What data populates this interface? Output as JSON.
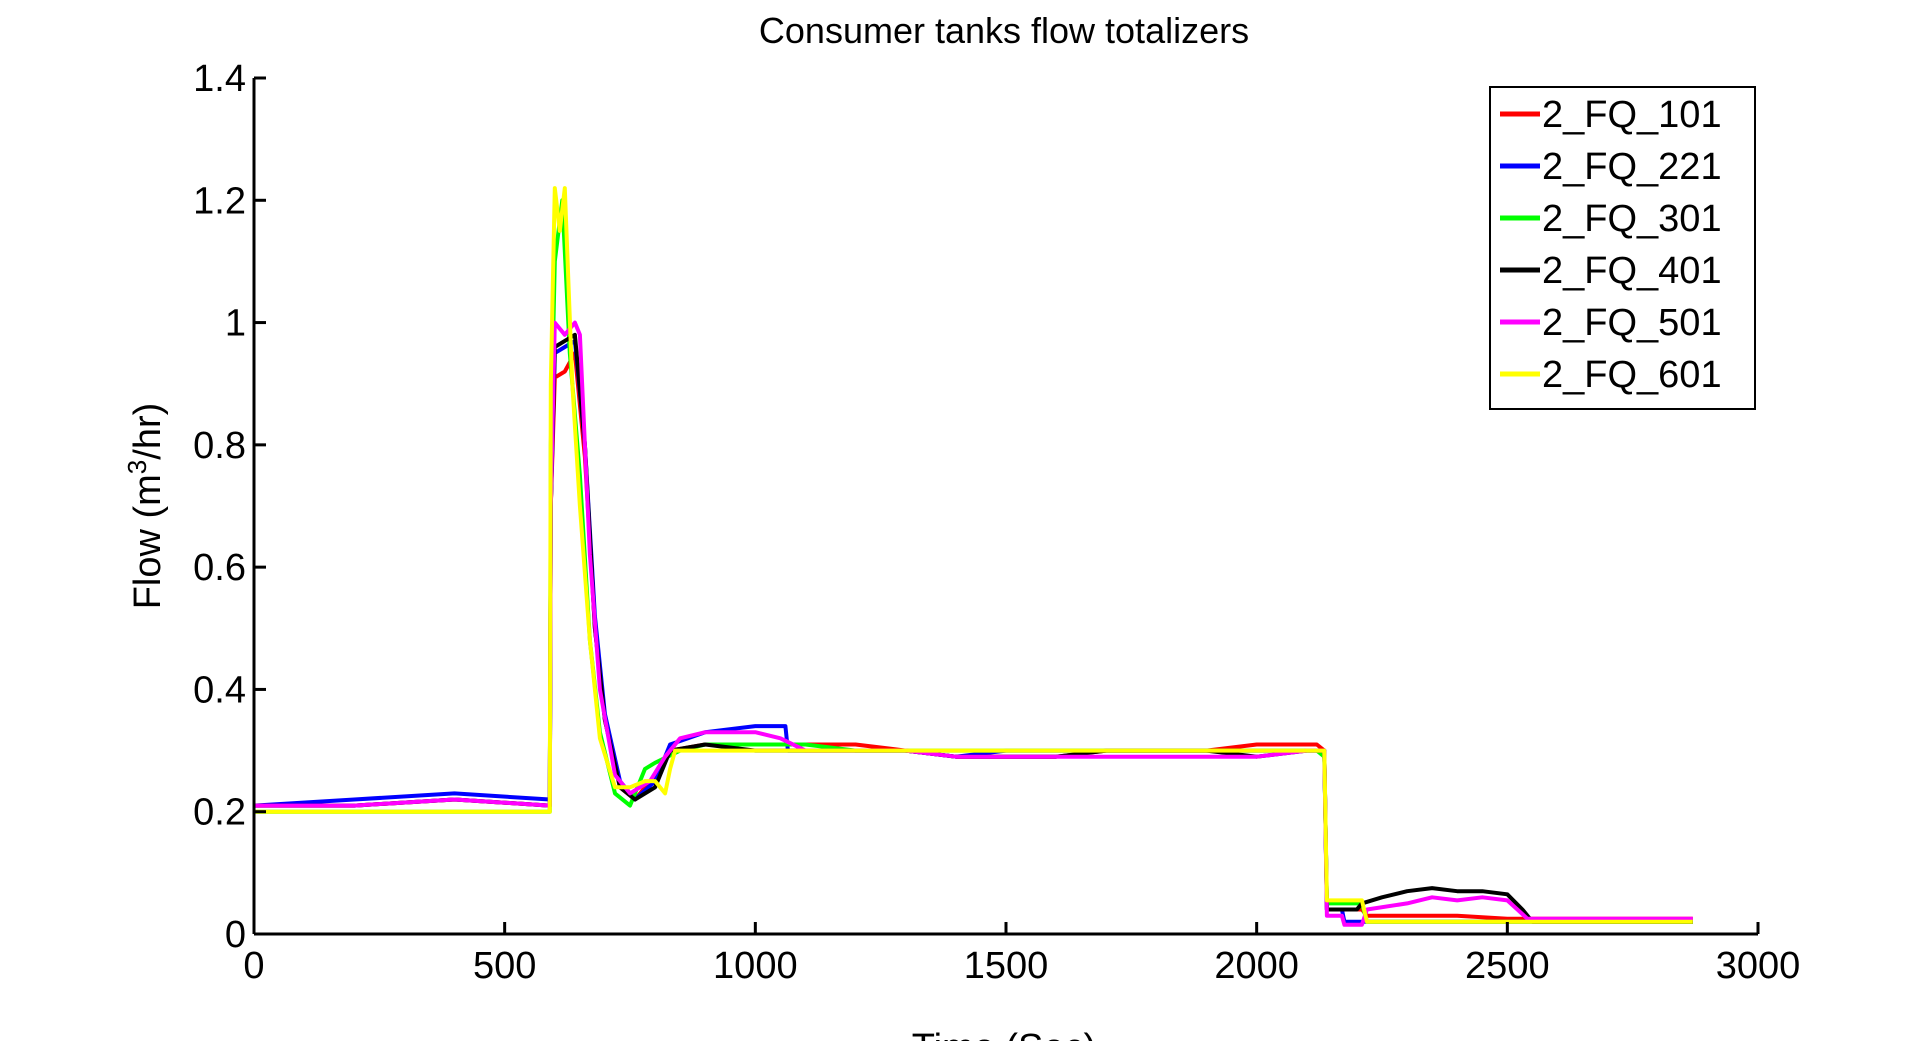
{
  "chart_data": {
    "type": "line",
    "title": "Consumer tanks flow totalizers",
    "xlabel": "Time (Sec)",
    "ylabel_main": "Flow (m",
    "ylabel_sup": "3",
    "ylabel_end": "/hr)",
    "xlim": [
      0,
      3000
    ],
    "ylim": [
      0,
      1.4
    ],
    "xticks": [
      0,
      500,
      1000,
      1500,
      2000,
      2500,
      3000
    ],
    "xtick_labels": [
      "0",
      "500",
      "1000",
      "1500",
      "2000",
      "2500",
      "3000"
    ],
    "yticks": [
      0,
      0.2,
      0.4,
      0.6,
      0.8,
      1.0,
      1.2,
      1.4
    ],
    "ytick_labels": [
      "0",
      "0.2",
      "0.4",
      "0.6",
      "0.8",
      "1",
      "1.2",
      "1.4"
    ],
    "grid": false,
    "legend_position": "top-right",
    "series": [
      {
        "name": "2_FQ_101",
        "color": "#ff0000",
        "x": [
          0,
          200,
          400,
          590,
          592,
          600,
          620,
          640,
          660,
          680,
          700,
          730,
          760,
          800,
          830,
          900,
          1000,
          1100,
          1200,
          1300,
          1400,
          1500,
          1600,
          1700,
          1800,
          1900,
          2000,
          2100,
          2120,
          2135,
          2140,
          2210,
          2220,
          2300,
          2400,
          2500,
          2550,
          2870
        ],
        "y": [
          0.21,
          0.21,
          0.22,
          0.21,
          0.7,
          0.91,
          0.92,
          0.95,
          0.78,
          0.5,
          0.35,
          0.24,
          0.22,
          0.26,
          0.3,
          0.31,
          0.31,
          0.31,
          0.31,
          0.3,
          0.29,
          0.29,
          0.29,
          0.3,
          0.3,
          0.3,
          0.31,
          0.31,
          0.31,
          0.3,
          0.04,
          0.04,
          0.03,
          0.03,
          0.03,
          0.025,
          0.025,
          0.025
        ]
      },
      {
        "name": "2_FQ_221",
        "color": "#0000ff",
        "x": [
          0,
          200,
          400,
          590,
          592,
          600,
          620,
          640,
          660,
          680,
          700,
          730,
          760,
          800,
          830,
          900,
          1000,
          1060,
          1065,
          1100,
          1200,
          1300,
          1400,
          1500,
          1600,
          1700,
          1800,
          1900,
          2000,
          2100,
          2120,
          2135,
          2140,
          2170,
          2175,
          2220,
          2300,
          2400,
          2500,
          2550,
          2870
        ],
        "y": [
          0.21,
          0.22,
          0.23,
          0.22,
          0.7,
          0.95,
          0.96,
          0.97,
          0.8,
          0.52,
          0.36,
          0.25,
          0.22,
          0.25,
          0.31,
          0.33,
          0.34,
          0.34,
          0.3,
          0.3,
          0.3,
          0.3,
          0.29,
          0.3,
          0.3,
          0.3,
          0.3,
          0.3,
          0.3,
          0.3,
          0.3,
          0.3,
          0.04,
          0.04,
          0.02,
          0.02,
          0.02,
          0.02,
          0.02,
          0.02,
          0.02
        ]
      },
      {
        "name": "2_FQ_301",
        "color": "#00ff00",
        "x": [
          0,
          200,
          400,
          590,
          592,
          600,
          615,
          630,
          650,
          670,
          690,
          720,
          750,
          780,
          800,
          850,
          900,
          1000,
          1100,
          1200,
          1300,
          1400,
          1500,
          1600,
          1700,
          1800,
          1900,
          2000,
          2100,
          2120,
          2135,
          2140,
          2210,
          2220,
          2300,
          2400,
          2500,
          2550,
          2870
        ],
        "y": [
          0.2,
          0.2,
          0.2,
          0.2,
          0.8,
          1.1,
          1.2,
          0.95,
          0.75,
          0.48,
          0.33,
          0.23,
          0.21,
          0.27,
          0.28,
          0.3,
          0.31,
          0.31,
          0.31,
          0.3,
          0.3,
          0.3,
          0.3,
          0.3,
          0.3,
          0.3,
          0.3,
          0.3,
          0.3,
          0.3,
          0.29,
          0.05,
          0.05,
          0.02,
          0.02,
          0.02,
          0.02,
          0.02,
          0.02
        ]
      },
      {
        "name": "2_FQ_401",
        "color": "#000000",
        "x": [
          0,
          200,
          400,
          590,
          592,
          600,
          620,
          640,
          660,
          680,
          700,
          730,
          760,
          800,
          830,
          900,
          1000,
          1100,
          1200,
          1300,
          1400,
          1500,
          1600,
          1700,
          1800,
          1900,
          2000,
          2100,
          2120,
          2135,
          2140,
          2200,
          2210,
          2250,
          2300,
          2350,
          2400,
          2450,
          2500,
          2530,
          2550,
          2870
        ],
        "y": [
          0.21,
          0.21,
          0.22,
          0.21,
          0.7,
          0.96,
          0.97,
          0.98,
          0.8,
          0.5,
          0.35,
          0.24,
          0.22,
          0.24,
          0.3,
          0.31,
          0.3,
          0.3,
          0.3,
          0.3,
          0.29,
          0.29,
          0.29,
          0.3,
          0.3,
          0.3,
          0.29,
          0.3,
          0.3,
          0.3,
          0.04,
          0.04,
          0.05,
          0.06,
          0.07,
          0.075,
          0.07,
          0.07,
          0.065,
          0.04,
          0.02,
          0.02
        ]
      },
      {
        "name": "2_FQ_501",
        "color": "#ff00ff",
        "x": [
          0,
          200,
          400,
          590,
          592,
          600,
          620,
          640,
          650,
          670,
          690,
          720,
          750,
          790,
          820,
          850,
          900,
          1000,
          1050,
          1100,
          1200,
          1300,
          1400,
          1500,
          1600,
          1700,
          1800,
          1900,
          2000,
          2100,
          2120,
          2135,
          2140,
          2170,
          2175,
          2210,
          2220,
          2300,
          2350,
          2400,
          2450,
          2500,
          2520,
          2540,
          2870
        ],
        "y": [
          0.21,
          0.21,
          0.22,
          0.21,
          0.7,
          1.0,
          0.98,
          1.0,
          0.98,
          0.62,
          0.4,
          0.26,
          0.23,
          0.25,
          0.29,
          0.32,
          0.33,
          0.33,
          0.32,
          0.3,
          0.3,
          0.3,
          0.29,
          0.29,
          0.29,
          0.29,
          0.29,
          0.29,
          0.29,
          0.3,
          0.3,
          0.3,
          0.03,
          0.03,
          0.015,
          0.015,
          0.04,
          0.05,
          0.06,
          0.055,
          0.06,
          0.055,
          0.04,
          0.025,
          0.025
        ]
      },
      {
        "name": "2_FQ_601",
        "color": "#ffff00",
        "x": [
          0,
          200,
          400,
          590,
          592,
          600,
          610,
          620,
          635,
          650,
          670,
          690,
          720,
          750,
          780,
          800,
          820,
          830,
          840,
          900,
          1000,
          1100,
          1200,
          1300,
          1400,
          1500,
          1600,
          1700,
          1800,
          1900,
          2000,
          2100,
          2120,
          2135,
          2140,
          2210,
          2220,
          2300,
          2400,
          2500,
          2550,
          2870
        ],
        "y": [
          0.2,
          0.2,
          0.2,
          0.2,
          0.9,
          1.22,
          1.15,
          1.22,
          0.9,
          0.7,
          0.48,
          0.32,
          0.24,
          0.24,
          0.25,
          0.25,
          0.23,
          0.27,
          0.3,
          0.3,
          0.3,
          0.3,
          0.3,
          0.3,
          0.3,
          0.3,
          0.3,
          0.3,
          0.3,
          0.3,
          0.3,
          0.3,
          0.3,
          0.3,
          0.055,
          0.055,
          0.02,
          0.02,
          0.02,
          0.02,
          0.02,
          0.02
        ]
      }
    ]
  }
}
